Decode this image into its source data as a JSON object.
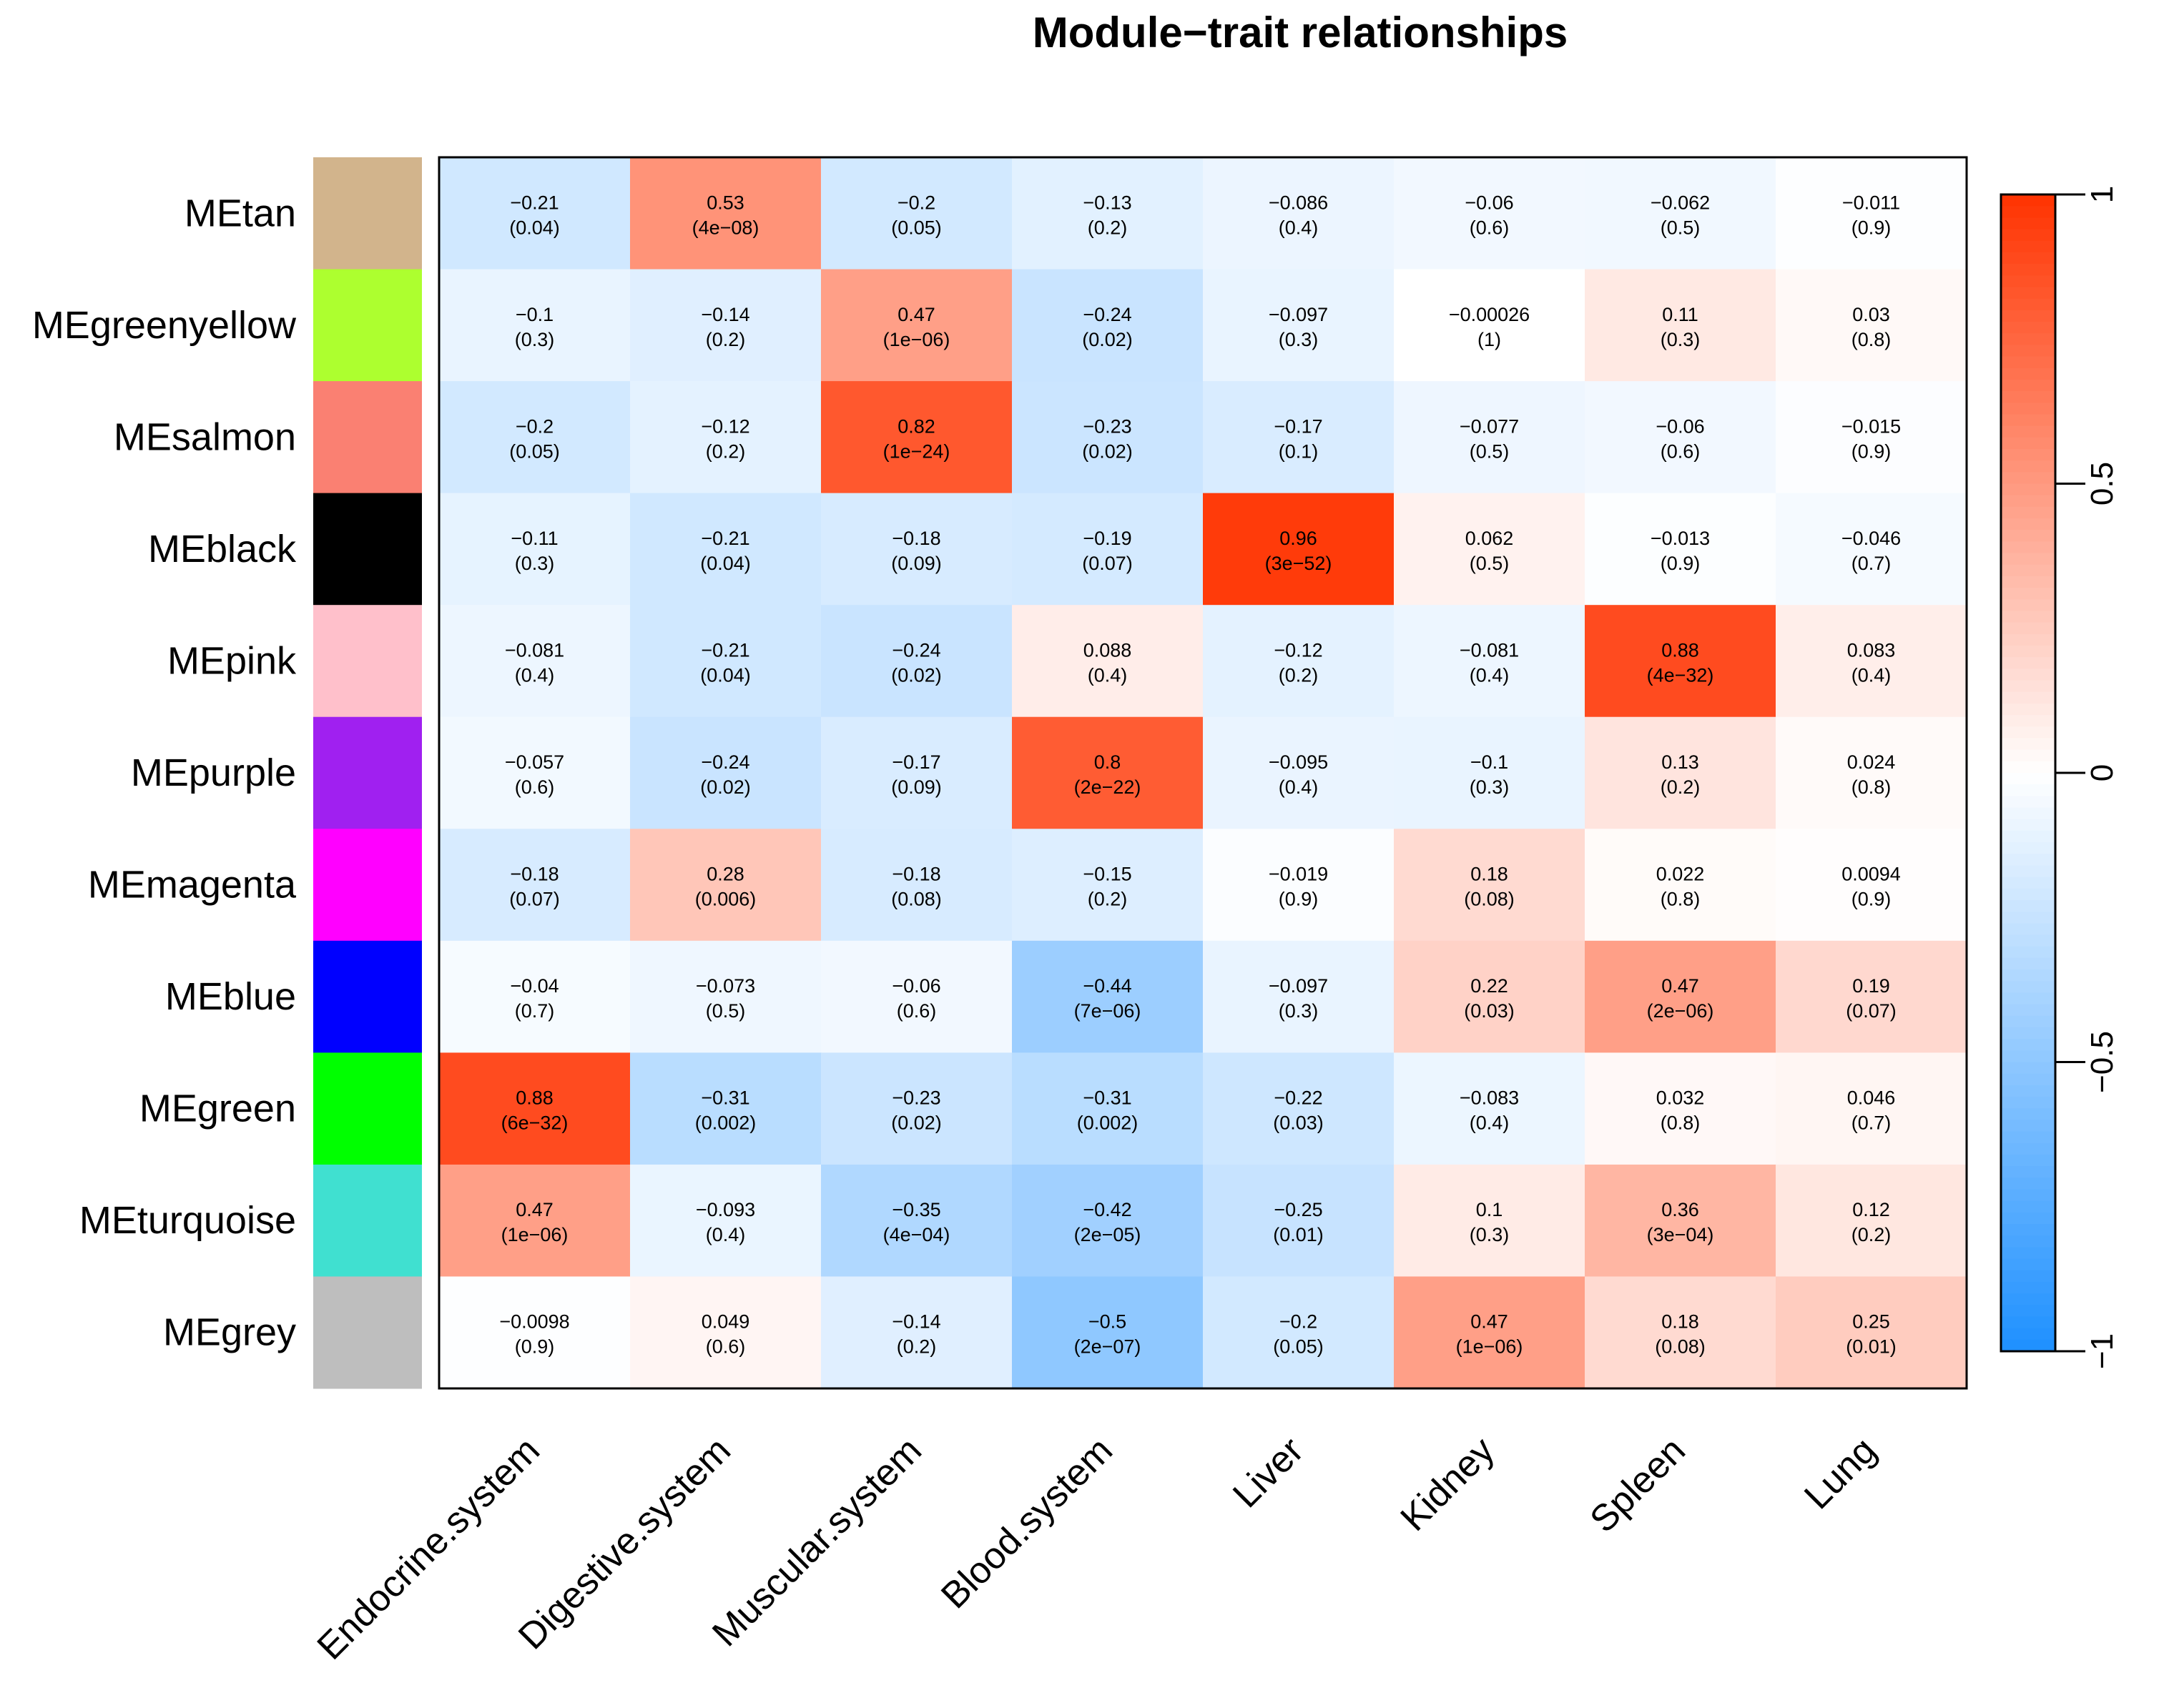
{
  "chart_data": {
    "type": "heatmap",
    "title": "Module−trait relationships",
    "modules": [
      "MEtan",
      "MEgreenyellow",
      "MEsalmon",
      "MEblack",
      "MEpink",
      "MEpurple",
      "MEmagenta",
      "MEblue",
      "MEgreen",
      "MEturquoise",
      "MEgrey"
    ],
    "module_colors": [
      "#D2B48C",
      "#ADFF2F",
      "#FA8072",
      "#000000",
      "#FFC0CB",
      "#A020F0",
      "#FF00FF",
      "#0000FF",
      "#00FF00",
      "#40E0D0",
      "#BEBEBE"
    ],
    "traits": [
      "Endocrine.system",
      "Digestive.system",
      "Muscular.system",
      "Blood.system",
      "Liver",
      "Kidney",
      "Spleen",
      "Lung"
    ],
    "correlations": [
      [
        -0.21,
        0.53,
        -0.2,
        -0.13,
        -0.086,
        -0.06,
        -0.062,
        -0.011
      ],
      [
        -0.1,
        -0.14,
        0.47,
        -0.24,
        -0.097,
        -0.00026,
        0.11,
        0.03
      ],
      [
        -0.2,
        -0.12,
        0.82,
        -0.23,
        -0.17,
        -0.077,
        -0.06,
        -0.015
      ],
      [
        -0.11,
        -0.21,
        -0.18,
        -0.19,
        0.96,
        0.062,
        -0.013,
        -0.046
      ],
      [
        -0.081,
        -0.21,
        -0.24,
        0.088,
        -0.12,
        -0.081,
        0.88,
        0.083
      ],
      [
        -0.057,
        -0.24,
        -0.17,
        0.8,
        -0.095,
        -0.1,
        0.13,
        0.024
      ],
      [
        -0.18,
        0.28,
        -0.18,
        -0.15,
        -0.019,
        0.18,
        0.022,
        0.0094
      ],
      [
        -0.04,
        -0.073,
        -0.06,
        -0.44,
        -0.097,
        0.22,
        0.47,
        0.19
      ],
      [
        0.88,
        -0.31,
        -0.23,
        -0.31,
        -0.22,
        -0.083,
        0.032,
        0.046
      ],
      [
        0.47,
        -0.093,
        -0.35,
        -0.42,
        -0.25,
        0.1,
        0.36,
        0.12
      ],
      [
        -0.0098,
        0.049,
        -0.14,
        -0.5,
        -0.2,
        0.47,
        0.18,
        0.25
      ]
    ],
    "cell_labels": [
      [
        "−0.21",
        "0.53",
        "−0.2",
        "−0.13",
        "−0.086",
        "−0.06",
        "−0.062",
        "−0.011"
      ],
      [
        "−0.1",
        "−0.14",
        "0.47",
        "−0.24",
        "−0.097",
        "−0.00026",
        "0.11",
        "0.03"
      ],
      [
        "−0.2",
        "−0.12",
        "0.82",
        "−0.23",
        "−0.17",
        "−0.077",
        "−0.06",
        "−0.015"
      ],
      [
        "−0.11",
        "−0.21",
        "−0.18",
        "−0.19",
        "0.96",
        "0.062",
        "−0.013",
        "−0.046"
      ],
      [
        "−0.081",
        "−0.21",
        "−0.24",
        "0.088",
        "−0.12",
        "−0.081",
        "0.88",
        "0.083"
      ],
      [
        "−0.057",
        "−0.24",
        "−0.17",
        "0.8",
        "−0.095",
        "−0.1",
        "0.13",
        "0.024"
      ],
      [
        "−0.18",
        "0.28",
        "−0.18",
        "−0.15",
        "−0.019",
        "0.18",
        "0.022",
        "0.0094"
      ],
      [
        "−0.04",
        "−0.073",
        "−0.06",
        "−0.44",
        "−0.097",
        "0.22",
        "0.47",
        "0.19"
      ],
      [
        "0.88",
        "−0.31",
        "−0.23",
        "−0.31",
        "−0.22",
        "−0.083",
        "0.032",
        "0.046"
      ],
      [
        "0.47",
        "−0.093",
        "−0.35",
        "−0.42",
        "−0.25",
        "0.1",
        "0.36",
        "0.12"
      ],
      [
        "−0.0098",
        "0.049",
        "−0.14",
        "−0.5",
        "−0.2",
        "0.47",
        "0.18",
        "0.25"
      ]
    ],
    "pvalues": [
      [
        "(0.04)",
        "(4e−08)",
        "(0.05)",
        "(0.2)",
        "(0.4)",
        "(0.6)",
        "(0.5)",
        "(0.9)"
      ],
      [
        "(0.3)",
        "(0.2)",
        "(1e−06)",
        "(0.02)",
        "(0.3)",
        "(1)",
        "(0.3)",
        "(0.8)"
      ],
      [
        "(0.05)",
        "(0.2)",
        "(1e−24)",
        "(0.02)",
        "(0.1)",
        "(0.5)",
        "(0.6)",
        "(0.9)"
      ],
      [
        "(0.3)",
        "(0.04)",
        "(0.09)",
        "(0.07)",
        "(3e−52)",
        "(0.5)",
        "(0.9)",
        "(0.7)"
      ],
      [
        "(0.4)",
        "(0.04)",
        "(0.02)",
        "(0.4)",
        "(0.2)",
        "(0.4)",
        "(4e−32)",
        "(0.4)"
      ],
      [
        "(0.6)",
        "(0.02)",
        "(0.09)",
        "(2e−22)",
        "(0.4)",
        "(0.3)",
        "(0.2)",
        "(0.8)"
      ],
      [
        "(0.07)",
        "(0.006)",
        "(0.08)",
        "(0.2)",
        "(0.9)",
        "(0.08)",
        "(0.8)",
        "(0.9)"
      ],
      [
        "(0.7)",
        "(0.5)",
        "(0.6)",
        "(7e−06)",
        "(0.3)",
        "(0.03)",
        "(2e−06)",
        "(0.07)"
      ],
      [
        "(6e−32)",
        "(0.002)",
        "(0.02)",
        "(0.002)",
        "(0.03)",
        "(0.4)",
        "(0.8)",
        "(0.7)"
      ],
      [
        "(1e−06)",
        "(0.4)",
        "(4e−04)",
        "(2e−05)",
        "(0.01)",
        "(0.3)",
        "(3e−04)",
        "(0.2)"
      ],
      [
        "(0.9)",
        "(0.6)",
        "(0.2)",
        "(2e−07)",
        "(0.05)",
        "(1e−06)",
        "(0.08)",
        "(0.01)"
      ]
    ],
    "colorscale": {
      "min": -1,
      "max": 1,
      "low_color": "#1E90FF",
      "mid_color": "#FFFFFF",
      "high_color": "#FF3300"
    },
    "colorbar_ticks": [
      -1,
      -0.5,
      0,
      0.5,
      1
    ],
    "colorbar_tick_labels": [
      "−1",
      "−0.5",
      "0",
      "0.5",
      "1"
    ]
  }
}
